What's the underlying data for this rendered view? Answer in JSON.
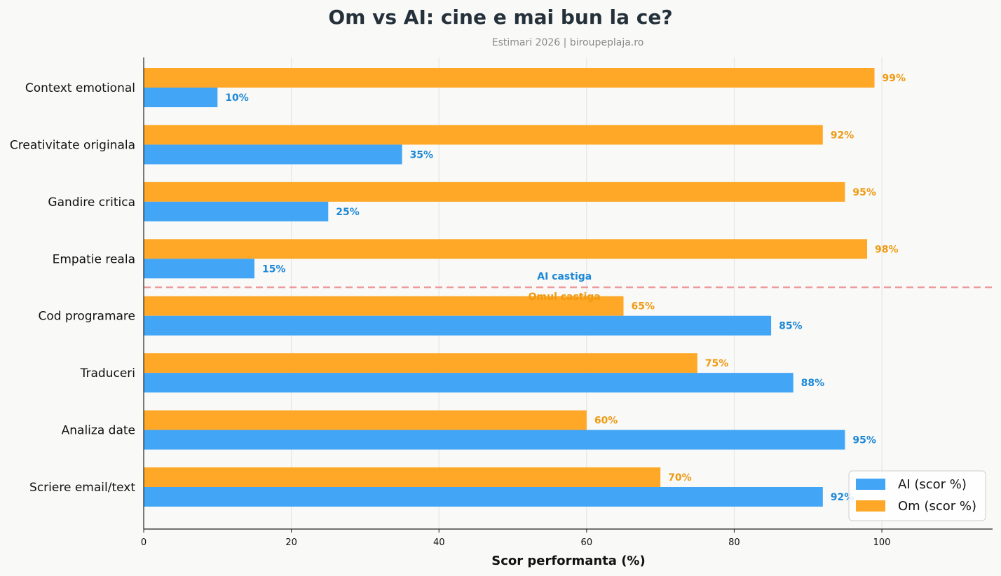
{
  "chart_data": {
    "type": "bar",
    "orientation": "horizontal",
    "title": "Om vs AI: cine e mai bun la ce?",
    "subtitle": "Estimari 2026 | biroupeplaja.ro",
    "xlabel": "Scor performanta (%)",
    "xlim": [
      0,
      115
    ],
    "xticks": [
      0,
      20,
      40,
      60,
      80,
      100
    ],
    "grid": "vertical",
    "categories": [
      "Context emotional",
      "Creativitate originala",
      "Gandire critica",
      "Empatie reala",
      "Cod programare",
      "Traduceri",
      "Analiza date",
      "Scriere email/text"
    ],
    "series": [
      {
        "name": "AI (scor %)",
        "color": "#42a5f5",
        "label_color": "#1e88d6",
        "values": [
          10,
          35,
          25,
          15,
          85,
          88,
          95,
          92
        ]
      },
      {
        "name": "Om (scor %)",
        "color": "#ffa726",
        "label_color": "#ef9a10",
        "values": [
          99,
          92,
          95,
          98,
          65,
          75,
          60,
          70
        ]
      }
    ],
    "value_suffix": "%",
    "divider": {
      "after_category": "Empatie reala",
      "color": "#ef9a9a",
      "label_above": "AI castiga",
      "label_below": "Omul castiga"
    },
    "legend_position": "bottom-right"
  }
}
